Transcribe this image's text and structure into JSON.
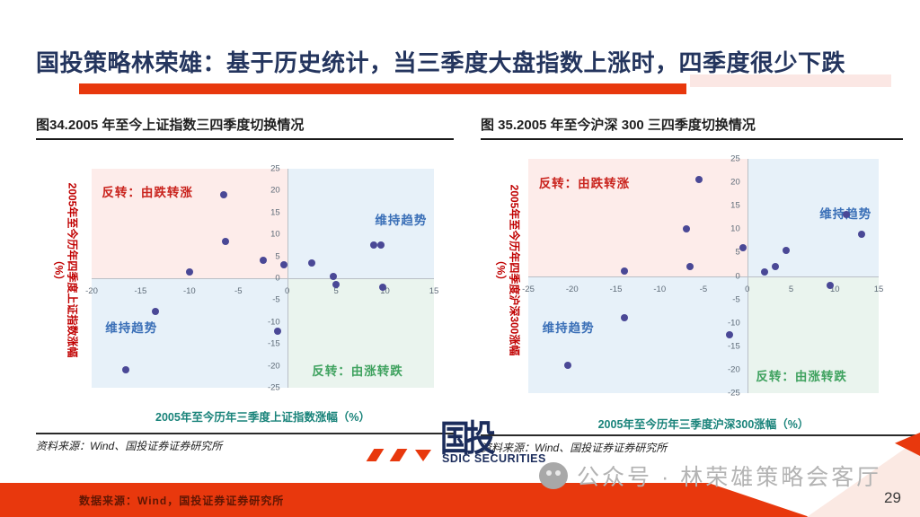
{
  "slide": {
    "title": "国投策略林荣雄：基于历史统计，当三季度大盘指数上涨时，四季度很少下跌",
    "page_number": "29"
  },
  "chart_data": [
    {
      "type": "scatter",
      "title": "图34.2005 年至今上证指数三四季度切换情况",
      "xlabel": "2005年至今历年三季度上证指数涨幅（%）",
      "ylabel": "2005年至今历年四季度上证指数涨幅（%）",
      "source": "资料来源：Wind、国投证券证券研究所",
      "xlim": [
        -20,
        15
      ],
      "ylim": [
        -25,
        25
      ],
      "xticks": [
        -20,
        -15,
        -10,
        -5,
        0,
        5,
        10,
        15
      ],
      "yticks": [
        25,
        20,
        15,
        10,
        5,
        0,
        -5,
        -10,
        -15,
        -20,
        -25
      ],
      "grid": false,
      "quadrant_labels": {
        "top_left": "反转：由跌转涨",
        "top_right": "维持趋势",
        "bottom_left": "维持趋势",
        "bottom_right": "反转：由涨转跌"
      },
      "points": [
        [
          -6.5,
          19
        ],
        [
          -6.3,
          8.5
        ],
        [
          -10,
          1.5
        ],
        [
          -2.5,
          4
        ],
        [
          -0.3,
          3
        ],
        [
          2.5,
          3.5
        ],
        [
          4.7,
          0.5
        ],
        [
          5,
          -1.5
        ],
        [
          8.8,
          7.5
        ],
        [
          9.6,
          7.5
        ],
        [
          9.8,
          -2
        ],
        [
          -13.5,
          -7.5
        ],
        [
          -1,
          -12
        ],
        [
          -16.5,
          -21
        ]
      ]
    },
    {
      "type": "scatter",
      "title": "图 35.2005 年至今沪深 300 三四季度切换情况",
      "xlabel": "2005年至今历年三季度沪深300涨幅（%）",
      "ylabel": "2005年至今历年四季度沪深300涨幅（%）",
      "source": "资料来源：Wind、国投证券证券研究所",
      "xlim": [
        -25,
        15
      ],
      "ylim": [
        -25,
        25
      ],
      "xticks": [
        -25,
        -20,
        -15,
        -10,
        -5,
        0,
        5,
        10,
        15
      ],
      "yticks": [
        25,
        20,
        15,
        10,
        5,
        0,
        -5,
        -10,
        -15,
        -20,
        -25
      ],
      "grid": false,
      "quadrant_labels": {
        "top_left": "反转：由跌转涨",
        "top_right": "维持趋势",
        "bottom_left": "维持趋势",
        "bottom_right": "反转：由涨转跌"
      },
      "points": [
        [
          -5.5,
          20.5
        ],
        [
          -7,
          10
        ],
        [
          -6.5,
          2
        ],
        [
          -14,
          1
        ],
        [
          -0.5,
          6
        ],
        [
          2,
          0.8
        ],
        [
          3.2,
          2
        ],
        [
          4.4,
          5.4
        ],
        [
          11.3,
          13.2
        ],
        [
          13,
          9
        ],
        [
          9.5,
          -2
        ],
        [
          -14,
          -9
        ],
        [
          -2,
          -12.5
        ],
        [
          -20.5,
          -19
        ]
      ]
    }
  ],
  "branding": {
    "logo_glyph": "国投",
    "logo_subtext": "SDIC SECURITIES"
  },
  "watermark": {
    "icon": "wechat-icon",
    "text": "公众号 · 林荣雄策略会客厅"
  },
  "footer": {
    "source_text": "数据来源：Wind，国投证券证券研究所"
  },
  "colors": {
    "accent_red": "#e8380d",
    "title_navy": "#24355e",
    "dot_purple": "#4a4896",
    "quadrant_pink": "#fdecea",
    "quadrant_blue": "#e7f1f9",
    "quadrant_green": "#eaf4ee",
    "quadrant_label_red": "#c9231d",
    "quadrant_label_blue": "#3a6fb7",
    "quadrant_label_green": "#3fa25f",
    "xlabel_teal": "#19837a",
    "ylabel_red": "#c00000",
    "logo_navy": "#1c2d5c",
    "watermark_gray": "#b3b3b3"
  }
}
